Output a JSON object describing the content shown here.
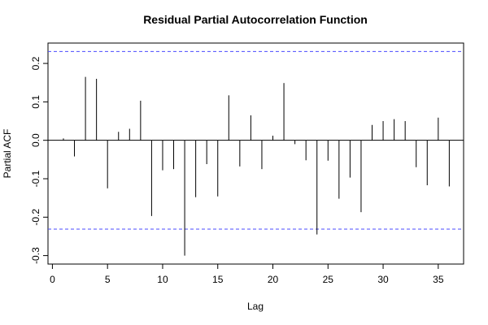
{
  "chart_data": {
    "type": "bar",
    "title": "Residual Partial Autocorrelation Function",
    "xlabel": "Lag",
    "ylabel": "Partial ACF",
    "xlim": [
      -0.4,
      37.3
    ],
    "ylim": [
      -0.322,
      0.253
    ],
    "xticks": [
      0,
      5,
      10,
      15,
      20,
      25,
      30,
      35
    ],
    "yticks": [
      -0.3,
      -0.2,
      -0.1,
      0.0,
      0.1,
      0.2
    ],
    "confidence_bounds": [
      0.231,
      -0.231
    ],
    "confidence_color": "#4b4bff",
    "x": [
      1,
      2,
      3,
      4,
      5,
      6,
      7,
      8,
      9,
      10,
      11,
      12,
      13,
      14,
      15,
      16,
      17,
      18,
      19,
      20,
      21,
      22,
      23,
      24,
      25,
      26,
      27,
      28,
      29,
      30,
      31,
      32,
      33,
      34,
      35,
      36
    ],
    "values": [
      0.005,
      -0.042,
      0.165,
      0.16,
      -0.125,
      0.022,
      0.03,
      0.103,
      -0.197,
      -0.078,
      -0.075,
      -0.3,
      -0.148,
      -0.062,
      -0.146,
      0.117,
      -0.068,
      0.065,
      -0.075,
      0.012,
      0.149,
      -0.01,
      -0.052,
      -0.245,
      -0.053,
      -0.152,
      -0.097,
      -0.187,
      0.04,
      0.05,
      0.055,
      0.05,
      -0.07,
      -0.117,
      0.059,
      -0.12
    ]
  }
}
